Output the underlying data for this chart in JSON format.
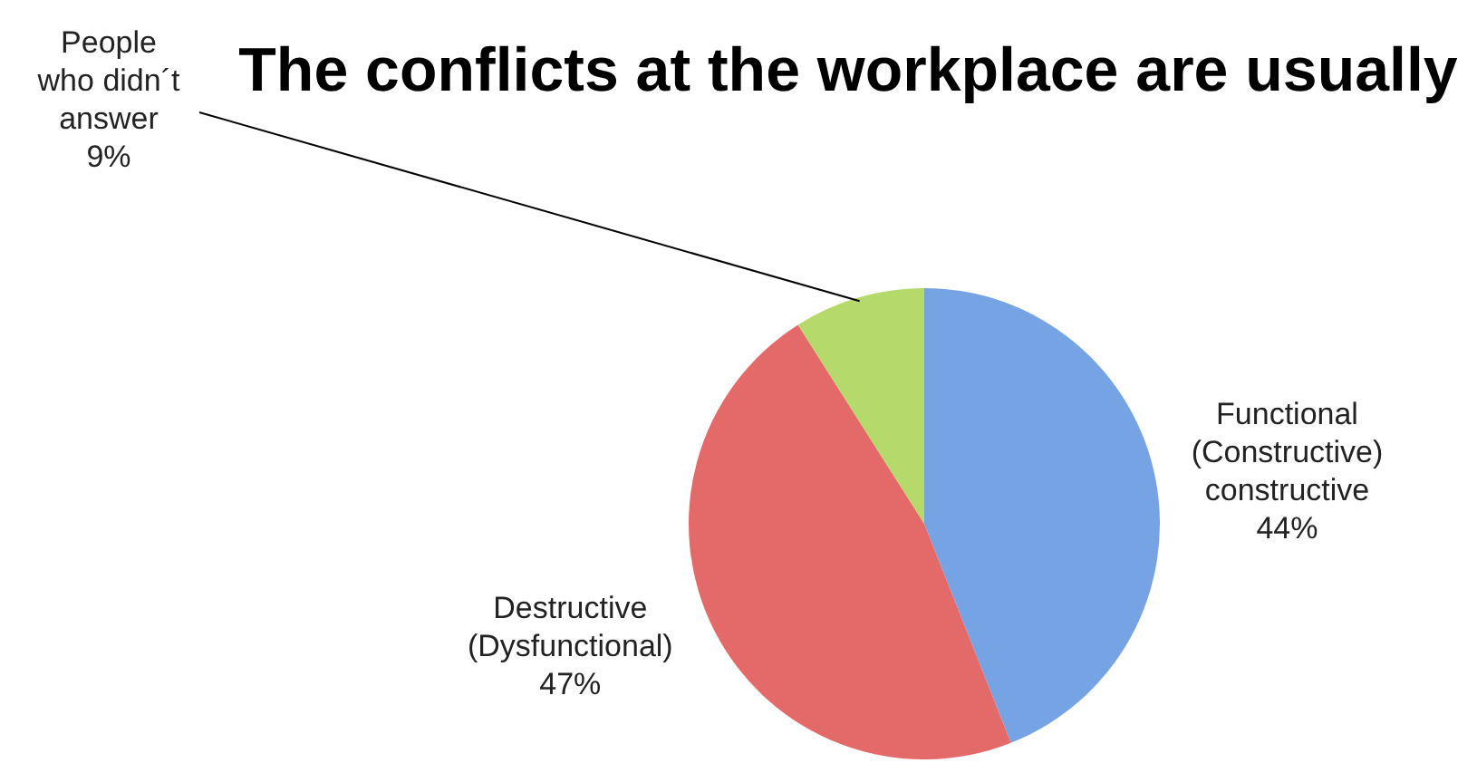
{
  "chart_data": {
    "type": "pie",
    "title": "The conflicts at the workplace are usually",
    "categories": [
      "Functional (Constructive) constructive",
      "Destructive (Dysfunctional)",
      "People who didn´t answer"
    ],
    "values": [
      44,
      47,
      9
    ],
    "value_labels": [
      "44%",
      "47%",
      "9%"
    ],
    "colors": [
      "#76a3e4",
      "#e46a6a",
      "#b6d96c"
    ],
    "legend": false
  }
}
